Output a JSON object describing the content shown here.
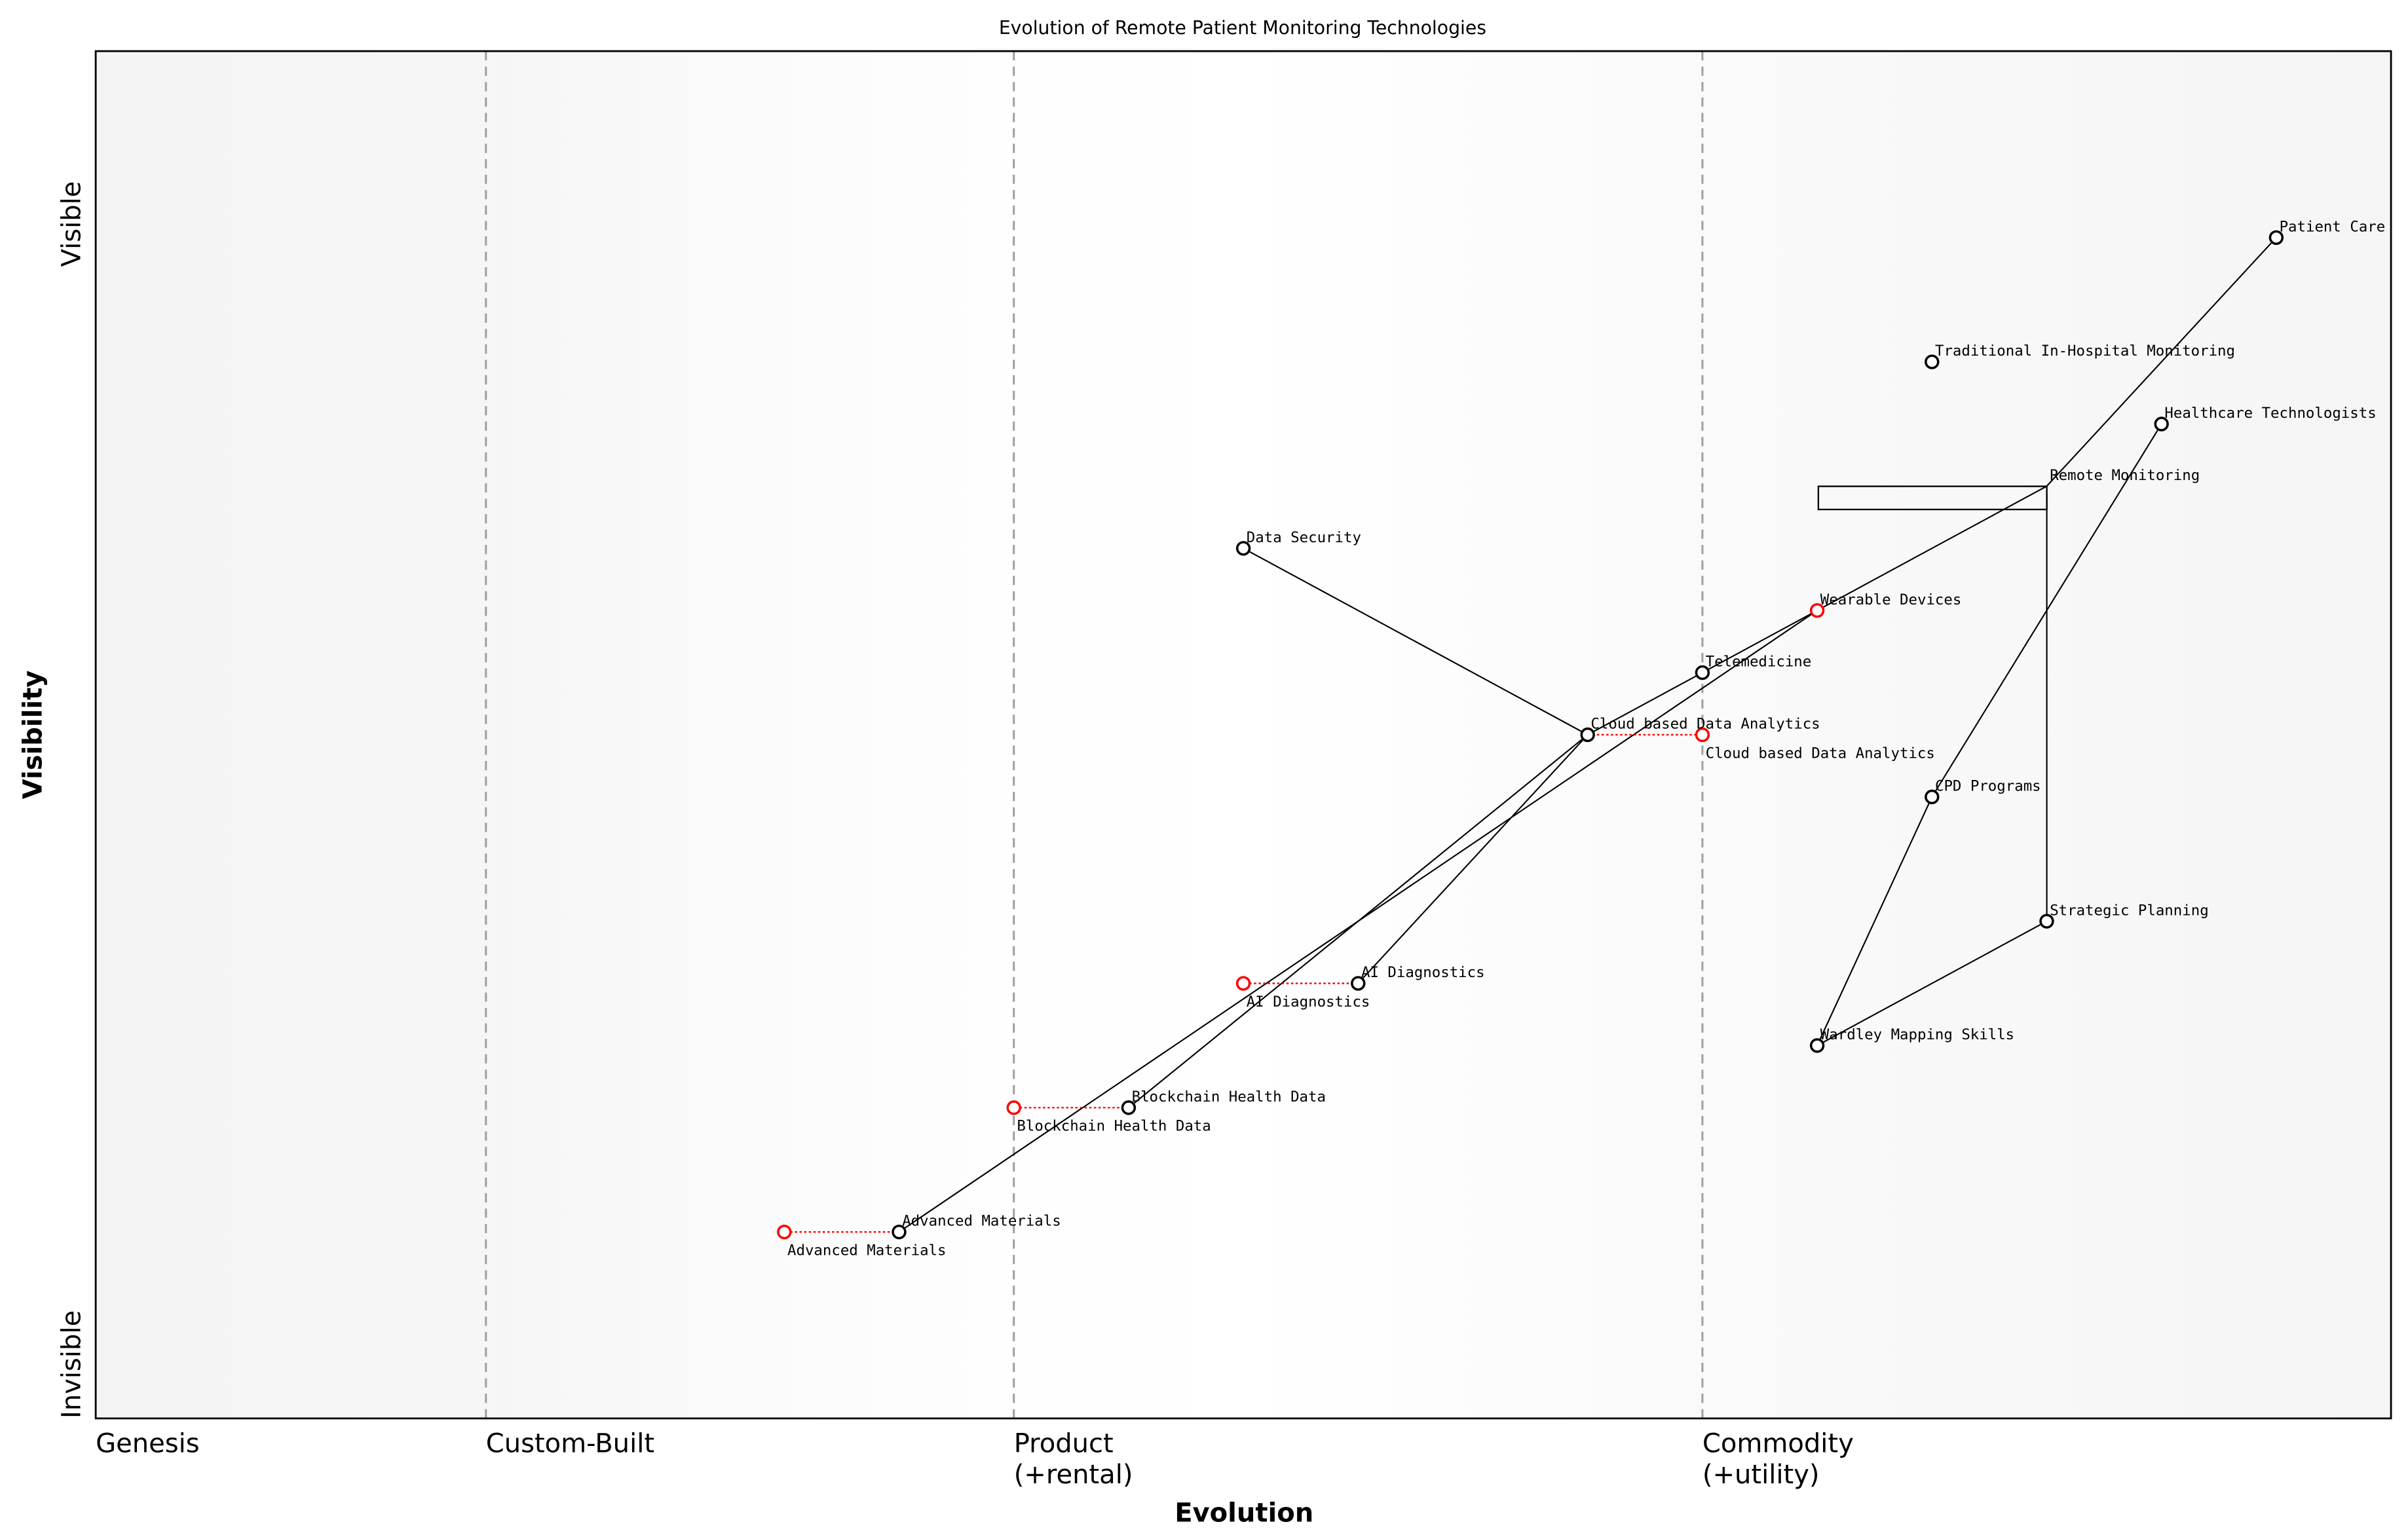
{
  "chart_data": {
    "type": "scatter",
    "title": "Evolution of Remote Patient Monitoring Technologies",
    "xlabel": "Evolution",
    "ylabel": "Visibility",
    "xlim": [
      0,
      1
    ],
    "ylim": [
      0,
      1.1
    ],
    "y_ticks": {
      "top": "Visible",
      "bottom": "Invisible"
    },
    "stages": [
      {
        "label": "Genesis",
        "x": 0.0,
        "line": false
      },
      {
        "label": "Custom-Built",
        "x": 0.17,
        "line": true
      },
      {
        "label": "Product\n(+rental)",
        "x": 0.4,
        "line": true
      },
      {
        "label": "Commodity\n(+utility)",
        "x": 0.7,
        "line": true
      }
    ],
    "nodes": [
      {
        "name": "Patient Care",
        "x": 0.95,
        "y": 0.95,
        "color": "#000000"
      },
      {
        "name": "Traditional In-Hospital Monitoring",
        "x": 0.8,
        "y": 0.85,
        "color": "#000000"
      },
      {
        "name": "Healthcare Technologists",
        "x": 0.9,
        "y": 0.8,
        "color": "#000000"
      },
      {
        "name": "Remote Monitoring",
        "x": 0.85,
        "y": 0.75,
        "color": "none"
      },
      {
        "name": "Data Security",
        "x": 0.5,
        "y": 0.7,
        "color": "#000000"
      },
      {
        "name": "Wearable Devices",
        "x": 0.75,
        "y": 0.65,
        "color": "#ff0000"
      },
      {
        "name": "Telemedicine",
        "x": 0.7,
        "y": 0.6,
        "color": "#000000"
      },
      {
        "name": "Cloud based Data Analytics",
        "x": 0.65,
        "y": 0.55,
        "color": "#000000"
      },
      {
        "name": "CPD Programs",
        "x": 0.8,
        "y": 0.5,
        "color": "#000000"
      },
      {
        "name": "Strategic Planning",
        "x": 0.85,
        "y": 0.4,
        "color": "#000000"
      },
      {
        "name": "AI Diagnostics",
        "x": 0.55,
        "y": 0.35,
        "color": "#000000"
      },
      {
        "name": "Wardley Mapping Skills",
        "x": 0.75,
        "y": 0.3,
        "color": "#000000"
      },
      {
        "name": "Blockchain Health Data",
        "x": 0.45,
        "y": 0.25,
        "color": "#000000"
      },
      {
        "name": "Advanced Materials",
        "x": 0.35,
        "y": 0.15,
        "color": "#000000"
      }
    ],
    "evolutions": [
      {
        "name": "Cloud based Data Analytics",
        "from": 0.65,
        "to": 0.7,
        "y": 0.55
      },
      {
        "name": "AI Diagnostics",
        "from": 0.55,
        "to": 0.5,
        "y": 0.35
      },
      {
        "name": "Blockchain Health Data",
        "from": 0.45,
        "to": 0.4,
        "y": 0.25
      },
      {
        "name": "Advanced Materials",
        "from": 0.35,
        "to": 0.3,
        "y": 0.15
      }
    ],
    "edges": [
      [
        "Patient Care",
        "Remote Monitoring"
      ],
      [
        "Remote Monitoring",
        "Wearable Devices"
      ],
      [
        "Wearable Devices",
        "Telemedicine"
      ],
      [
        "Telemedicine",
        "Cloud based Data Analytics"
      ],
      [
        "Wearable Devices",
        "Advanced Materials"
      ],
      [
        "Cloud based Data Analytics",
        "Data Security"
      ],
      [
        "Cloud based Data Analytics",
        "AI Diagnostics"
      ],
      [
        "Cloud based Data Analytics",
        "Blockchain Health Data"
      ],
      [
        "Healthcare Technologists",
        "CPD Programs"
      ],
      [
        "CPD Programs",
        "Wardley Mapping Skills"
      ],
      [
        "Wardley Mapping Skills",
        "Strategic Planning"
      ]
    ],
    "grid": false,
    "legend": "none"
  }
}
